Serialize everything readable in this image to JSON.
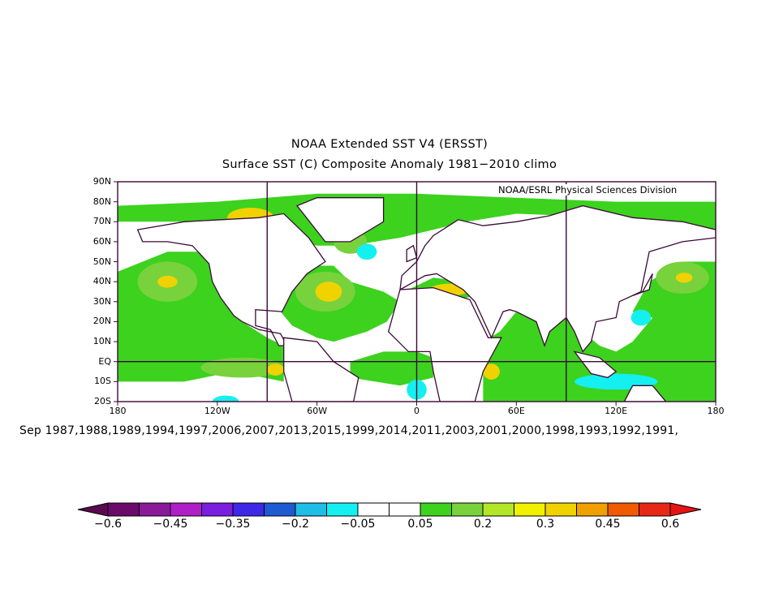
{
  "titles": {
    "line1": "NOAA Extended SST V4 (ERSST)",
    "line2": "Surface SST (C) Composite Anomaly 1981−2010 climo"
  },
  "credit": "NOAA/ESRL Physical Sciences Division",
  "subtitle": "Sep 1987,1988,1989,1994,1997,2006,2007,2013,2015,1999,2014,2011,2003,2001,2000,1998,1993,1992,1991,",
  "map": {
    "lon_range": [
      -180,
      180
    ],
    "lat_range": [
      -20,
      90
    ],
    "lat_labels": [
      {
        "lat": 90,
        "text": "90N"
      },
      {
        "lat": 80,
        "text": "80N"
      },
      {
        "lat": 70,
        "text": "70N"
      },
      {
        "lat": 60,
        "text": "60N"
      },
      {
        "lat": 50,
        "text": "50N"
      },
      {
        "lat": 40,
        "text": "40N"
      },
      {
        "lat": 30,
        "text": "30N"
      },
      {
        "lat": 20,
        "text": "20N"
      },
      {
        "lat": 10,
        "text": "10N"
      },
      {
        "lat": 0,
        "text": "EQ"
      },
      {
        "lat": -10,
        "text": "10S"
      },
      {
        "lat": -20,
        "text": "20S"
      }
    ],
    "lon_labels": [
      {
        "lon": -180,
        "text": "180"
      },
      {
        "lon": -120,
        "text": "120W"
      },
      {
        "lon": -60,
        "text": "60W"
      },
      {
        "lon": 0,
        "text": "0"
      },
      {
        "lon": 60,
        "text": "60E"
      },
      {
        "lon": 120,
        "text": "120E"
      },
      {
        "lon": 180,
        "text": "180"
      }
    ],
    "grid_lons": [
      -90,
      0,
      90
    ],
    "grid_lats": [
      0
    ]
  },
  "colorbar": {
    "colors": [
      "#6a0a6a",
      "#8a1a9a",
      "#b01ec8",
      "#7a1ee0",
      "#3c28e6",
      "#1e5ad2",
      "#1ebee6",
      "#14f0f0",
      "#ffffff",
      "#ffffff",
      "#3cd21e",
      "#78d23c",
      "#b4e628",
      "#f0f000",
      "#f0d200",
      "#f0a000",
      "#f05a00",
      "#e62814"
    ],
    "min_color": "#5a0a50",
    "max_color": "#e61414",
    "labels": [
      {
        "i": 0,
        "text": "−0.6"
      },
      {
        "i": 2,
        "text": "−0.45"
      },
      {
        "i": 4,
        "text": "−0.35"
      },
      {
        "i": 6,
        "text": "−0.2"
      },
      {
        "i": 8,
        "text": "−0.05"
      },
      {
        "i": 10,
        "text": "0.05"
      },
      {
        "i": 12,
        "text": "0.2"
      },
      {
        "i": 14,
        "text": "0.3"
      },
      {
        "i": 16,
        "text": "0.45"
      },
      {
        "i": 18,
        "text": "0.6"
      }
    ]
  },
  "colors": {
    "frame": "#3a0a36",
    "land": "#ffffff",
    "green": "#3cd21e",
    "lightgreen": "#78d23c",
    "yellow": "#f0d200",
    "cyan": "#14f0f0"
  }
}
